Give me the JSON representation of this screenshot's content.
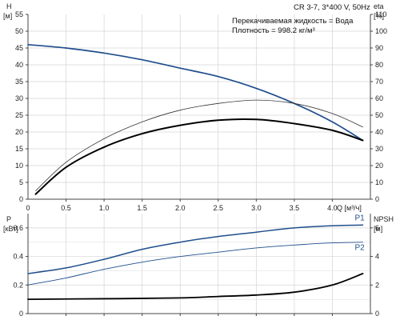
{
  "chart_data": [
    {
      "type": "line",
      "panel": "top",
      "info_box": {
        "model": "CR 3-7, 3*400 V, 50Hz",
        "liquid": "Перекачиваемая жидкость = Вода",
        "density": "Плотность = 998.2 кг/м³"
      },
      "left_axis": {
        "label": "H",
        "unit": "[м]",
        "range": [
          0,
          55
        ],
        "ticks": [
          "0",
          "5",
          "10",
          "15",
          "20",
          "25",
          "30",
          "35",
          "40",
          "45",
          "50",
          "55"
        ]
      },
      "right_axis": {
        "label": "eta",
        "unit": "[%]",
        "range": [
          0,
          110
        ],
        "ticks": [
          "0",
          "10",
          "20",
          "30",
          "40",
          "50",
          "60",
          "70",
          "80",
          "90",
          "100",
          "110"
        ]
      },
      "x_axis": {
        "label": "Q [м³/ч]",
        "range": [
          0,
          4.5
        ],
        "ticks": [
          "0",
          "0.5",
          "1.0",
          "1.5",
          "2.0",
          "2.5",
          "3.0",
          "3.5",
          "4.0"
        ]
      },
      "grid": true,
      "series": [
        {
          "role": "head",
          "color": "#1f4e8c",
          "x": [
            0,
            0.5,
            1.0,
            1.5,
            2.0,
            2.5,
            3.0,
            3.5,
            4.0,
            4.4
          ],
          "y": [
            46,
            45,
            43.5,
            41.5,
            39,
            36.5,
            33,
            28.5,
            23,
            17.5
          ]
        },
        {
          "role": "eta-thin",
          "axis": "right",
          "color": "#333333",
          "x": [
            0.1,
            0.5,
            1.0,
            1.5,
            2.0,
            2.5,
            3.0,
            3.5,
            4.0,
            4.4
          ],
          "y": [
            5,
            22,
            36,
            46,
            53,
            57,
            59,
            57,
            51,
            43
          ]
        },
        {
          "role": "eta-bold",
          "axis": "right",
          "color": "#000000",
          "x": [
            0.1,
            0.5,
            1.0,
            1.5,
            2.0,
            2.5,
            3.0,
            3.5,
            4.0,
            4.4
          ],
          "y": [
            3,
            19,
            31,
            39,
            44,
            47,
            47.5,
            45,
            41,
            35
          ]
        }
      ]
    },
    {
      "type": "line",
      "panel": "bottom",
      "left_axis": {
        "label": "P",
        "unit": "[кВт]",
        "range": [
          0,
          0.7
        ],
        "ticks": [
          "0",
          "0.2",
          "0.4",
          "0.6"
        ]
      },
      "right_axis": {
        "label": "NPSH",
        "unit": "[м]",
        "range": [
          0,
          7
        ],
        "ticks": [
          "0",
          "2",
          "4",
          "6"
        ]
      },
      "x_axis": {
        "range": [
          0,
          4.5
        ]
      },
      "grid": true,
      "series": [
        {
          "name": "P1",
          "color": "#1f4e8c",
          "x": [
            0,
            0.5,
            1.0,
            1.5,
            2.0,
            2.5,
            3.0,
            3.5,
            4.0,
            4.4
          ],
          "y": [
            0.28,
            0.32,
            0.38,
            0.45,
            0.5,
            0.54,
            0.57,
            0.6,
            0.615,
            0.62
          ]
        },
        {
          "name": "P2",
          "color": "#1f4e8c",
          "x": [
            0,
            0.5,
            1.0,
            1.5,
            2.0,
            2.5,
            3.0,
            3.5,
            4.0,
            4.4
          ],
          "y": [
            0.2,
            0.25,
            0.31,
            0.36,
            0.4,
            0.43,
            0.46,
            0.48,
            0.495,
            0.5
          ]
        },
        {
          "role": "npsh",
          "axis": "right",
          "color": "#000000",
          "x": [
            0,
            1.2,
            2.0,
            2.5,
            3.0,
            3.5,
            4.0,
            4.4
          ],
          "y": [
            1.0,
            1.05,
            1.1,
            1.2,
            1.3,
            1.5,
            2.0,
            2.8
          ]
        }
      ]
    }
  ]
}
